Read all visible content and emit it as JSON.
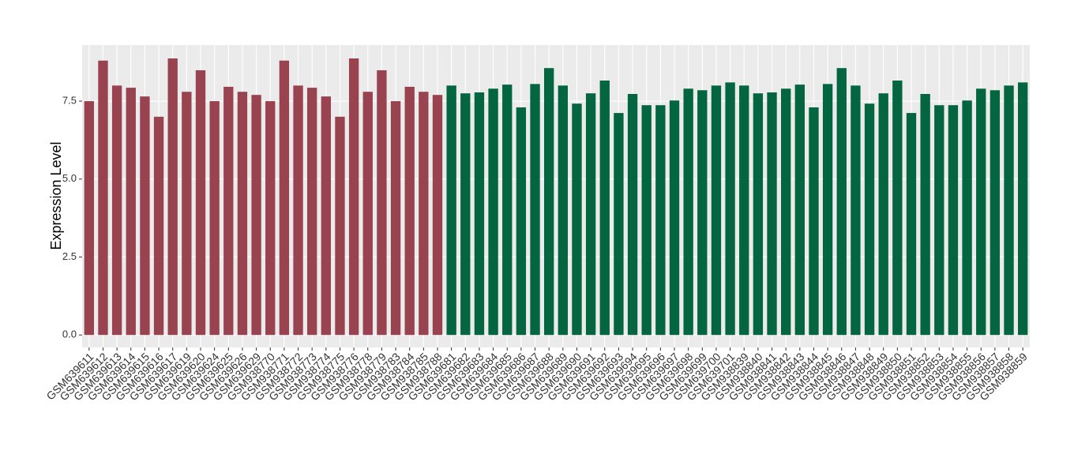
{
  "chart_data": {
    "type": "bar",
    "y_label": "Expression Level",
    "categories": [
      "GSM639611",
      "GSM639612",
      "GSM639613",
      "GSM639614",
      "GSM639615",
      "GSM639616",
      "GSM639617",
      "GSM639619",
      "GSM639620",
      "GSM639624",
      "GSM639625",
      "GSM639626",
      "GSM639629",
      "GSM938770",
      "GSM938771",
      "GSM938772",
      "GSM938773",
      "GSM938774",
      "GSM938775",
      "GSM938776",
      "GSM938778",
      "GSM938779",
      "GSM938783",
      "GSM938784",
      "GSM938785",
      "GSM938788",
      "GSM639681",
      "GSM639682",
      "GSM639683",
      "GSM639684",
      "GSM639685",
      "GSM639686",
      "GSM639687",
      "GSM639688",
      "GSM639689",
      "GSM639690",
      "GSM639691",
      "GSM639692",
      "GSM639693",
      "GSM639694",
      "GSM639695",
      "GSM639696",
      "GSM639697",
      "GSM639698",
      "GSM639699",
      "GSM639700",
      "GSM639701",
      "GSM938839",
      "GSM938840",
      "GSM938841",
      "GSM938842",
      "GSM938843",
      "GSM938844",
      "GSM938845",
      "GSM938846",
      "GSM938847",
      "GSM938848",
      "GSM938849",
      "GSM938850",
      "GSM938851",
      "GSM938852",
      "GSM938853",
      "GSM938854",
      "GSM938855",
      "GSM938856",
      "GSM938857",
      "GSM938858",
      "GSM938859"
    ],
    "values": [
      7.5,
      8.8,
      8.0,
      7.93,
      7.65,
      7.0,
      8.87,
      7.8,
      8.49,
      7.5,
      7.96,
      7.8,
      7.7,
      7.5,
      8.8,
      8.0,
      7.93,
      7.65,
      7.0,
      8.87,
      7.8,
      8.49,
      7.5,
      7.96,
      7.8,
      7.7,
      8.0,
      7.75,
      7.78,
      7.9,
      8.03,
      7.3,
      8.05,
      8.56,
      8.0,
      7.42,
      7.75,
      8.16,
      7.12,
      7.73,
      7.37,
      7.37,
      7.52,
      7.9,
      7.85,
      8.0,
      8.1,
      8.0,
      7.75,
      7.78,
      7.9,
      8.03,
      7.3,
      8.05,
      8.56,
      8.0,
      7.42,
      7.75,
      8.16,
      7.12,
      7.73,
      7.37,
      7.37,
      7.52,
      7.9,
      7.85,
      8.0,
      8.1
    ],
    "colors": [
      "#9a4350",
      "#9a4350",
      "#9a4350",
      "#9a4350",
      "#9a4350",
      "#9a4350",
      "#9a4350",
      "#9a4350",
      "#9a4350",
      "#9a4350",
      "#9a4350",
      "#9a4350",
      "#9a4350",
      "#9a4350",
      "#9a4350",
      "#9a4350",
      "#9a4350",
      "#9a4350",
      "#9a4350",
      "#9a4350",
      "#9a4350",
      "#9a4350",
      "#9a4350",
      "#9a4350",
      "#9a4350",
      "#9a4350",
      "#036641",
      "#036641",
      "#036641",
      "#036641",
      "#036641",
      "#036641",
      "#036641",
      "#036641",
      "#036641",
      "#036641",
      "#036641",
      "#036641",
      "#036641",
      "#036641",
      "#036641",
      "#036641",
      "#036641",
      "#036641",
      "#036641",
      "#036641",
      "#036641",
      "#036641",
      "#036641",
      "#036641",
      "#036641",
      "#036641",
      "#036641",
      "#036641",
      "#036641",
      "#036641",
      "#036641",
      "#036641",
      "#036641",
      "#036641",
      "#036641",
      "#036641",
      "#036641",
      "#036641",
      "#036641",
      "#036641",
      "#036641",
      "#036641"
    ],
    "ylim": [
      -0.4,
      9.3
    ],
    "yticks": [
      {
        "value": 0,
        "label": "0.0"
      },
      {
        "value": 2.5,
        "label": "2.5"
      },
      {
        "value": 5,
        "label": "5.0"
      },
      {
        "value": 7.5,
        "label": "7.5"
      }
    ],
    "grid": true
  }
}
